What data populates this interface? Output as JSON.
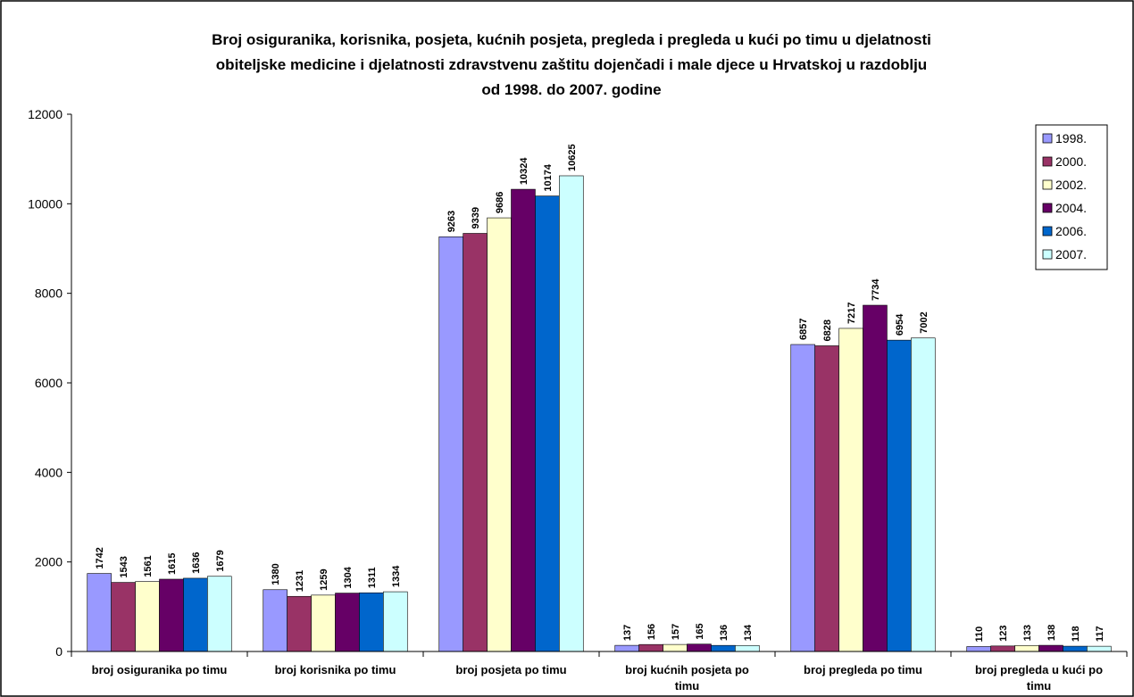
{
  "chart_data": {
    "type": "bar",
    "title": [
      "Broj osiguranika, korisnika, posjeta, kućnih posjeta, pregleda i pregleda u kući po timu u djelatnosti",
      "obiteljske medicine i djelatnosti zdravstvenu zaštitu dojenčadi i male djece u Hrvatskoj u razdoblju",
      "od 1998. do 2007. godine"
    ],
    "categories": [
      "broj osiguranika po timu",
      "broj korisnika po timu",
      "broj posjeta po timu",
      "broj kućnih posjeta po timu",
      "broj pregleda po timu",
      "broj pregleda u kući po timu"
    ],
    "series": [
      {
        "name": "1998.",
        "color": "#9999FF",
        "values": [
          1742,
          1380,
          9263,
          137,
          6857,
          110
        ]
      },
      {
        "name": "2000.",
        "color": "#993366",
        "values": [
          1543,
          1231,
          9339,
          156,
          6828,
          123
        ]
      },
      {
        "name": "2002.",
        "color": "#FFFFCC",
        "values": [
          1561,
          1259,
          9686,
          157,
          7217,
          133
        ]
      },
      {
        "name": "2004.",
        "color": "#660066",
        "values": [
          1615,
          1304,
          10324,
          165,
          7734,
          138
        ]
      },
      {
        "name": "2006.",
        "color": "#0066CC",
        "values": [
          1636,
          1311,
          10174,
          136,
          6954,
          118
        ]
      },
      {
        "name": "2007.",
        "color": "#CCFFFF",
        "values": [
          1679,
          1334,
          10625,
          134,
          7002,
          117
        ]
      }
    ],
    "ylim": [
      0,
      12000
    ],
    "yticks": [
      0,
      2000,
      4000,
      6000,
      8000,
      10000,
      12000
    ],
    "grid": false,
    "legend": "top-right"
  }
}
